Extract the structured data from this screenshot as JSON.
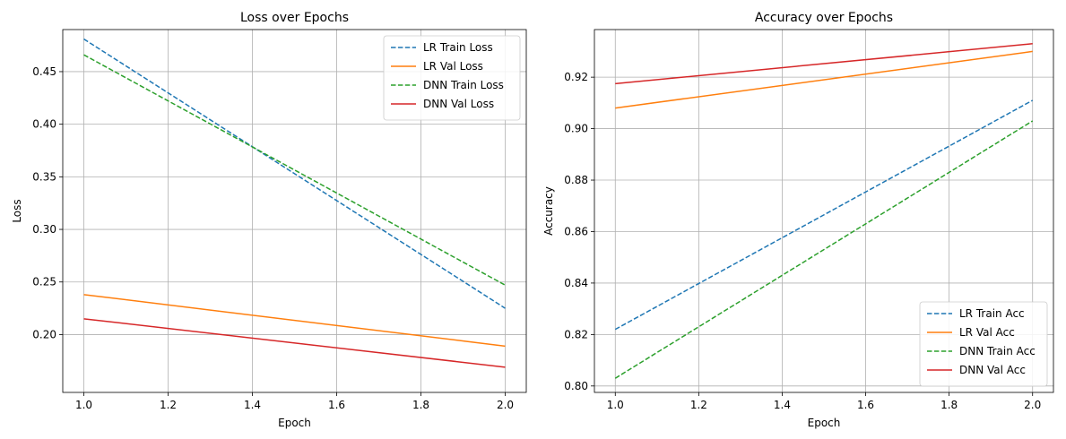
{
  "chart_data": [
    {
      "type": "line",
      "title": "Loss over Epochs",
      "xlabel": "Epoch",
      "ylabel": "Loss",
      "xlim": [
        0.95,
        2.05
      ],
      "ylim": [
        0.145,
        0.49
      ],
      "xticks": [
        1.0,
        1.2,
        1.4,
        1.6,
        1.8,
        2.0
      ],
      "xtick_labels": [
        "1.0",
        "1.2",
        "1.4",
        "1.6",
        "1.8",
        "2.0"
      ],
      "yticks": [
        0.2,
        0.25,
        0.3,
        0.35,
        0.4,
        0.45
      ],
      "ytick_labels": [
        "0.20",
        "0.25",
        "0.30",
        "0.35",
        "0.40",
        "0.45"
      ],
      "grid": true,
      "legend_position": "top-right",
      "x": [
        1.0,
        2.0
      ],
      "series": [
        {
          "name": "LR Train Loss",
          "values": [
            0.481,
            0.225
          ],
          "color": "#1f77b4",
          "style": "dashed"
        },
        {
          "name": "LR Val Loss",
          "values": [
            0.238,
            0.189
          ],
          "color": "#ff7f0e",
          "style": "solid"
        },
        {
          "name": "DNN Train Loss",
          "values": [
            0.466,
            0.247
          ],
          "color": "#2ca02c",
          "style": "dashed"
        },
        {
          "name": "DNN Val Loss",
          "values": [
            0.215,
            0.169
          ],
          "color": "#d62728",
          "style": "solid"
        }
      ]
    },
    {
      "type": "line",
      "title": "Accuracy over Epochs",
      "xlabel": "Epoch",
      "ylabel": "Accuracy",
      "xlim": [
        0.95,
        2.05
      ],
      "ylim": [
        0.7975,
        0.9385
      ],
      "xticks": [
        1.0,
        1.2,
        1.4,
        1.6,
        1.8,
        2.0
      ],
      "xtick_labels": [
        "1.0",
        "1.2",
        "1.4",
        "1.6",
        "1.8",
        "2.0"
      ],
      "yticks": [
        0.8,
        0.82,
        0.84,
        0.86,
        0.88,
        0.9,
        0.92
      ],
      "ytick_labels": [
        "0.80",
        "0.82",
        "0.84",
        "0.86",
        "0.88",
        "0.90",
        "0.92"
      ],
      "grid": true,
      "legend_position": "bottom-right",
      "x": [
        1.0,
        2.0
      ],
      "series": [
        {
          "name": "LR Train Acc",
          "values": [
            0.822,
            0.911
          ],
          "color": "#1f77b4",
          "style": "dashed"
        },
        {
          "name": "LR Val Acc",
          "values": [
            0.908,
            0.93
          ],
          "color": "#ff7f0e",
          "style": "solid"
        },
        {
          "name": "DNN Train Acc",
          "values": [
            0.803,
            0.903
          ],
          "color": "#2ca02c",
          "style": "dashed"
        },
        {
          "name": "DNN Val Acc",
          "values": [
            0.9175,
            0.933
          ],
          "color": "#d62728",
          "style": "solid"
        }
      ]
    }
  ]
}
